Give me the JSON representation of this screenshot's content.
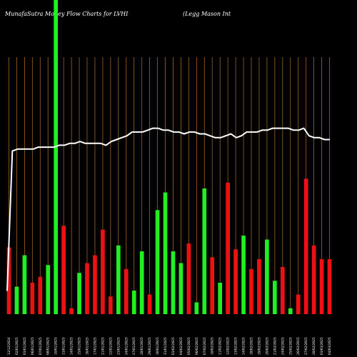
{
  "header": {
    "title": "MunafaSutra  Money Flow  Charts for LVHI",
    "subtitle": "(Legg Mason  Int"
  },
  "colors": {
    "background": "#000000",
    "grid": "#a0622a",
    "up": "#22ee22",
    "down": "#ee1111",
    "price_line": "#ffffff"
  },
  "chart_data": {
    "type": "bar",
    "grid": true,
    "categories": [
      "31/12/2024",
      "02/01/2025",
      "03/01/2025",
      "06/01/2025",
      "07/01/2025",
      "08/01/2025",
      "10/01/2025",
      "13/01/2025",
      "14/01/2025",
      "15/01/2025",
      "16/01/2025",
      "17/01/2025",
      "21/01/2025",
      "22/01/2025",
      "23/01/2025",
      "24/01/2025",
      "27/01/2025",
      "28/01/2025",
      "29/01/2025",
      "30/01/2025",
      "31/01/2025",
      "03/02/2025",
      "04/02/2025",
      "05/02/2025",
      "06/02/2025",
      "07/02/2025",
      "10/02/2025",
      "11/02/2025",
      "12/02/2025",
      "13/02/2025",
      "14/02/2025",
      "18/02/2025",
      "19/02/2025",
      "20/02/2025",
      "21/02/2025",
      "24/02/2025",
      "25/02/2025",
      "26/02/2025",
      "27/02/2025",
      "28/02/2025",
      "03/03/2025",
      "04/03/2025"
    ],
    "bars": {
      "values": [
        34,
        14,
        30,
        16,
        19,
        25,
        160,
        45,
        3,
        21,
        26,
        30,
        43,
        9,
        35,
        23,
        12,
        32,
        10,
        53,
        62,
        32,
        26,
        36,
        6,
        64,
        29,
        16,
        67,
        33,
        40,
        23,
        28,
        38,
        17,
        24,
        3,
        10,
        69,
        35,
        28,
        28
      ],
      "colors": [
        "red",
        "green",
        "green",
        "red",
        "red",
        "green",
        "green",
        "red",
        "red",
        "green",
        "red",
        "red",
        "red",
        "red",
        "green",
        "red",
        "green",
        "green",
        "red",
        "green",
        "green",
        "green",
        "green",
        "red",
        "green",
        "green",
        "red",
        "green",
        "red",
        "red",
        "green",
        "red",
        "red",
        "green",
        "green",
        "red",
        "green",
        "red",
        "red",
        "red",
        "red",
        "red"
      ],
      "ylim": [
        0,
        160
      ]
    },
    "price_series": {
      "values": [
        10,
        84,
        85,
        85,
        85,
        85,
        86,
        86,
        86,
        86,
        87,
        87,
        88,
        88,
        89,
        88,
        88,
        88,
        88,
        87,
        89,
        90,
        91,
        92,
        94,
        94,
        94,
        95,
        96,
        96,
        95,
        95,
        94,
        94,
        93,
        94,
        94,
        93,
        93,
        92,
        91,
        91,
        92,
        93,
        91,
        92,
        94,
        94,
        94,
        95,
        95,
        96,
        96,
        96,
        96,
        95,
        95,
        96,
        92,
        91,
        91,
        90,
        90
      ],
      "ylim": [
        0,
        100
      ]
    }
  }
}
